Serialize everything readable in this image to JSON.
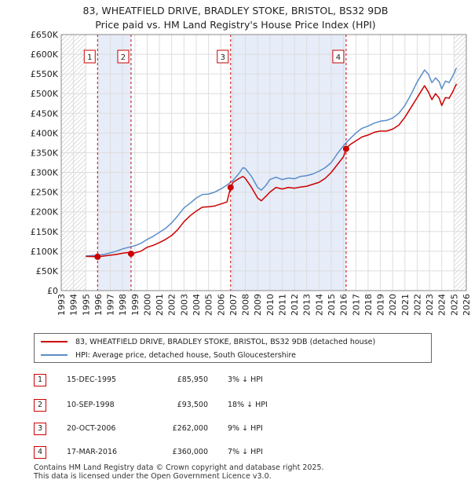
{
  "header": {
    "title": "83, WHEATFIELD DRIVE, BRADLEY STOKE, BRISTOL, BS32 9DB",
    "subtitle": "Price paid vs. HM Land Registry's House Price Index (HPI)"
  },
  "chart_data": {
    "type": "line",
    "title": "Price paid vs. HM Land Registry's House Price Index (HPI)",
    "xlabel": "",
    "ylabel": "",
    "xlim": [
      1993,
      2026
    ],
    "ylim": [
      0,
      650000
    ],
    "y_ticks": [
      0,
      50000,
      100000,
      150000,
      200000,
      250000,
      300000,
      350000,
      400000,
      450000,
      500000,
      550000,
      600000,
      650000
    ],
    "y_tick_labels": [
      "£0",
      "£50K",
      "£100K",
      "£150K",
      "£200K",
      "£250K",
      "£300K",
      "£350K",
      "£400K",
      "£450K",
      "£500K",
      "£550K",
      "£600K",
      "£650K"
    ],
    "x_ticks": [
      1993,
      1994,
      1995,
      1996,
      1997,
      1998,
      1999,
      2000,
      2001,
      2002,
      2003,
      2004,
      2005,
      2006,
      2007,
      2008,
      2009,
      2010,
      2011,
      2012,
      2013,
      2014,
      2015,
      2016,
      2017,
      2018,
      2019,
      2020,
      2021,
      2022,
      2023,
      2024,
      2025,
      2026
    ],
    "x_tick_labels": [
      "1993",
      "1994",
      "1995",
      "1996",
      "1997",
      "1998",
      "1999",
      "2000",
      "2001",
      "2002",
      "2003",
      "2004",
      "2005",
      "2006",
      "2007",
      "2008",
      "2009",
      "2010",
      "2011",
      "2012",
      "2013",
      "2014",
      "2015",
      "2016",
      "2017",
      "2018",
      "2019",
      "2020",
      "2021",
      "2022",
      "2023",
      "2024",
      "2025",
      "2026"
    ],
    "hatched_before": 1995.0,
    "hatched_after": 2025.0,
    "shaded_spans": [
      [
        1995.96,
        1998.69
      ],
      [
        2006.8,
        2016.21
      ]
    ],
    "series": [
      {
        "name": "83, WHEATFIELD DRIVE, BRADLEY STOKE, BRISTOL, BS32 9DB (detached house)",
        "color": "#cc0000",
        "points": [
          [
            1995.0,
            87000
          ],
          [
            1995.5,
            86500
          ],
          [
            1995.96,
            85950
          ],
          [
            1996.5,
            88000
          ],
          [
            1997.0,
            90000
          ],
          [
            1997.5,
            92000
          ],
          [
            1998.0,
            95000
          ],
          [
            1998.5,
            97000
          ],
          [
            1998.69,
            93500
          ],
          [
            1999.0,
            96000
          ],
          [
            1999.5,
            100000
          ],
          [
            2000.0,
            110000
          ],
          [
            2000.5,
            115000
          ],
          [
            2001.0,
            122000
          ],
          [
            2001.5,
            130000
          ],
          [
            2002.0,
            140000
          ],
          [
            2002.5,
            155000
          ],
          [
            2003.0,
            175000
          ],
          [
            2003.5,
            190000
          ],
          [
            2004.0,
            202000
          ],
          [
            2004.5,
            212000
          ],
          [
            2005.0,
            213000
          ],
          [
            2005.5,
            215000
          ],
          [
            2006.0,
            220000
          ],
          [
            2006.5,
            225000
          ],
          [
            2006.8,
            262000
          ],
          [
            2007.0,
            275000
          ],
          [
            2007.5,
            285000
          ],
          [
            2007.8,
            290000
          ],
          [
            2008.0,
            285000
          ],
          [
            2008.5,
            262000
          ],
          [
            2009.0,
            235000
          ],
          [
            2009.3,
            228000
          ],
          [
            2009.7,
            240000
          ],
          [
            2010.0,
            250000
          ],
          [
            2010.5,
            262000
          ],
          [
            2011.0,
            258000
          ],
          [
            2011.5,
            262000
          ],
          [
            2012.0,
            260000
          ],
          [
            2012.5,
            263000
          ],
          [
            2013.0,
            265000
          ],
          [
            2013.5,
            270000
          ],
          [
            2014.0,
            275000
          ],
          [
            2014.5,
            285000
          ],
          [
            2015.0,
            300000
          ],
          [
            2015.5,
            320000
          ],
          [
            2016.0,
            340000
          ],
          [
            2016.21,
            360000
          ],
          [
            2016.5,
            370000
          ],
          [
            2017.0,
            380000
          ],
          [
            2017.5,
            390000
          ],
          [
            2018.0,
            395000
          ],
          [
            2018.5,
            402000
          ],
          [
            2019.0,
            405000
          ],
          [
            2019.5,
            405000
          ],
          [
            2020.0,
            410000
          ],
          [
            2020.5,
            420000
          ],
          [
            2021.0,
            440000
          ],
          [
            2021.5,
            465000
          ],
          [
            2022.0,
            490000
          ],
          [
            2022.3,
            505000
          ],
          [
            2022.6,
            520000
          ],
          [
            2022.9,
            505000
          ],
          [
            2023.2,
            485000
          ],
          [
            2023.5,
            500000
          ],
          [
            2023.8,
            488000
          ],
          [
            2024.0,
            470000
          ],
          [
            2024.3,
            490000
          ],
          [
            2024.6,
            488000
          ],
          [
            2024.9,
            505000
          ],
          [
            2025.2,
            525000
          ]
        ]
      },
      {
        "name": "HPI: Average price, detached house, South Gloucestershire",
        "color": "#5b8dc9",
        "points": [
          [
            1995.0,
            88000
          ],
          [
            1995.5,
            89000
          ],
          [
            1996.0,
            90000
          ],
          [
            1996.5,
            92000
          ],
          [
            1997.0,
            96000
          ],
          [
            1997.5,
            100000
          ],
          [
            1998.0,
            106000
          ],
          [
            1998.5,
            110000
          ],
          [
            1999.0,
            114000
          ],
          [
            1999.5,
            120000
          ],
          [
            2000.0,
            130000
          ],
          [
            2000.5,
            138000
          ],
          [
            2001.0,
            148000
          ],
          [
            2001.5,
            158000
          ],
          [
            2002.0,
            172000
          ],
          [
            2002.5,
            190000
          ],
          [
            2003.0,
            210000
          ],
          [
            2003.5,
            222000
          ],
          [
            2004.0,
            235000
          ],
          [
            2004.5,
            244000
          ],
          [
            2005.0,
            245000
          ],
          [
            2005.5,
            250000
          ],
          [
            2006.0,
            258000
          ],
          [
            2006.5,
            268000
          ],
          [
            2007.0,
            280000
          ],
          [
            2007.5,
            298000
          ],
          [
            2007.8,
            312000
          ],
          [
            2008.0,
            310000
          ],
          [
            2008.5,
            290000
          ],
          [
            2009.0,
            262000
          ],
          [
            2009.3,
            255000
          ],
          [
            2009.7,
            268000
          ],
          [
            2010.0,
            282000
          ],
          [
            2010.5,
            288000
          ],
          [
            2011.0,
            282000
          ],
          [
            2011.5,
            286000
          ],
          [
            2012.0,
            284000
          ],
          [
            2012.5,
            290000
          ],
          [
            2013.0,
            292000
          ],
          [
            2013.5,
            296000
          ],
          [
            2014.0,
            303000
          ],
          [
            2014.5,
            312000
          ],
          [
            2015.0,
            325000
          ],
          [
            2015.5,
            348000
          ],
          [
            2016.0,
            368000
          ],
          [
            2016.5,
            385000
          ],
          [
            2017.0,
            400000
          ],
          [
            2017.5,
            412000
          ],
          [
            2018.0,
            418000
          ],
          [
            2018.5,
            425000
          ],
          [
            2019.0,
            430000
          ],
          [
            2019.5,
            432000
          ],
          [
            2020.0,
            438000
          ],
          [
            2020.5,
            450000
          ],
          [
            2021.0,
            470000
          ],
          [
            2021.5,
            498000
          ],
          [
            2022.0,
            530000
          ],
          [
            2022.3,
            545000
          ],
          [
            2022.6,
            560000
          ],
          [
            2022.9,
            550000
          ],
          [
            2023.2,
            528000
          ],
          [
            2023.5,
            540000
          ],
          [
            2023.8,
            530000
          ],
          [
            2024.0,
            512000
          ],
          [
            2024.3,
            532000
          ],
          [
            2024.6,
            528000
          ],
          [
            2024.9,
            545000
          ],
          [
            2025.2,
            565000
          ]
        ]
      }
    ],
    "sales": [
      {
        "label": "1",
        "x": 1995.96,
        "y": 85950
      },
      {
        "label": "2",
        "x": 1998.69,
        "y": 93500
      },
      {
        "label": "3",
        "x": 2006.8,
        "y": 262000
      },
      {
        "label": "4",
        "x": 2016.21,
        "y": 360000
      }
    ]
  },
  "legend": {
    "items": [
      {
        "label": "83, WHEATFIELD DRIVE, BRADLEY STOKE, BRISTOL, BS32 9DB (detached house)",
        "color": "#cc0000"
      },
      {
        "label": "HPI: Average price, detached house, South Gloucestershire",
        "color": "#5b8dc9"
      }
    ]
  },
  "transactions": [
    {
      "num": "1",
      "date": "15-DEC-1995",
      "price": "£85,950",
      "hpi": "3% ↓ HPI"
    },
    {
      "num": "2",
      "date": "10-SEP-1998",
      "price": "£93,500",
      "hpi": "18% ↓ HPI"
    },
    {
      "num": "3",
      "date": "20-OCT-2006",
      "price": "£262,000",
      "hpi": "9% ↓ HPI"
    },
    {
      "num": "4",
      "date": "17-MAR-2016",
      "price": "£360,000",
      "hpi": "7% ↓ HPI"
    }
  ],
  "footer": {
    "line1": "Contains HM Land Registry data © Crown copyright and database right 2025.",
    "line2": "This data is licensed under the Open Government Licence v3.0."
  }
}
